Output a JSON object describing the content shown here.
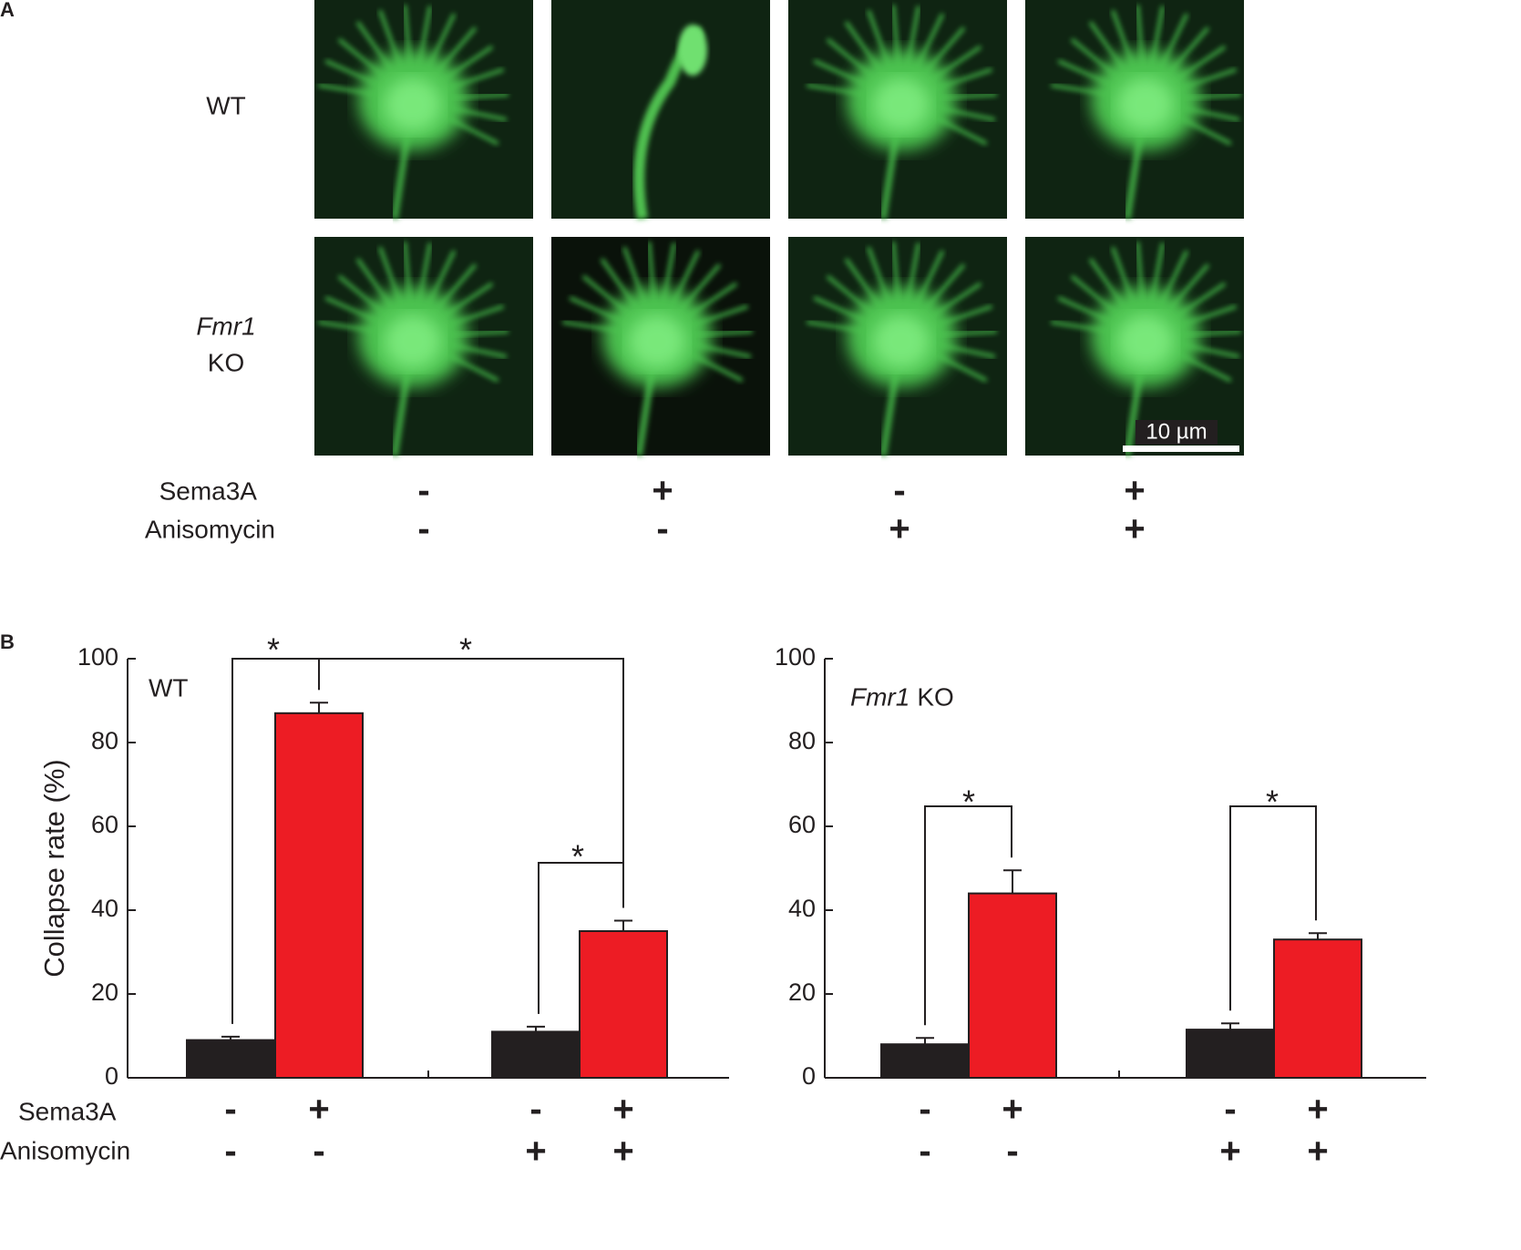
{
  "panel_a": {
    "label": "A",
    "row_wt": "WT",
    "row_ko_italic": "Fmr1",
    "row_ko": "KO",
    "scale_bar": "10 µm",
    "treatment_names": [
      "Sema3A",
      "Anisomycin"
    ],
    "treatments": [
      [
        "-",
        "+",
        "-",
        "+"
      ],
      [
        "-",
        "-",
        "+",
        "+"
      ]
    ]
  },
  "panel_b": {
    "label": "B",
    "treatment_names": [
      "Sema3A",
      "Anisomycin"
    ]
  },
  "chart_data": [
    {
      "type": "bar",
      "title": "WT",
      "y_label": "Collapse rate (%)",
      "values": [
        9,
        87,
        11,
        35
      ],
      "errors": [
        0.8,
        2.5,
        1.2,
        2.5
      ],
      "colors": [
        "#231f20",
        "#ed1c24",
        "#231f20",
        "#ed1c24"
      ],
      "treatments": [
        [
          "-",
          "+",
          "-",
          "+"
        ],
        [
          "-",
          "-",
          "+",
          "+"
        ]
      ],
      "significance": [
        "*",
        "*",
        "*"
      ],
      "ylim": [
        0,
        100
      ],
      "yticks": [
        0,
        20,
        40,
        60,
        80,
        100
      ]
    },
    {
      "type": "bar",
      "title_italic": "Fmr1",
      "title": "KO",
      "values": [
        8,
        44,
        11.5,
        33
      ],
      "errors": [
        1.5,
        5.5,
        1.5,
        1.5
      ],
      "colors": [
        "#231f20",
        "#ed1c24",
        "#231f20",
        "#ed1c24"
      ],
      "treatments": [
        [
          "-",
          "+",
          "-",
          "+"
        ],
        [
          "-",
          "-",
          "+",
          "+"
        ]
      ],
      "significance": [
        "*",
        "*"
      ],
      "ylim": [
        0,
        100
      ],
      "yticks": [
        0,
        20,
        40,
        60,
        80,
        100
      ]
    }
  ]
}
